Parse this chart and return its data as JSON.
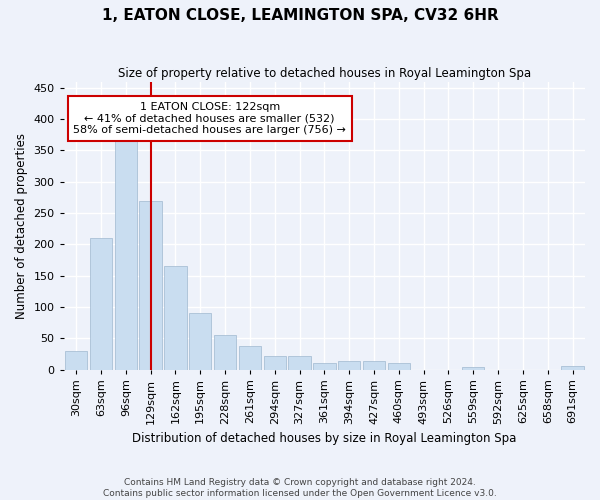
{
  "title": "1, EATON CLOSE, LEAMINGTON SPA, CV32 6HR",
  "subtitle": "Size of property relative to detached houses in Royal Leamington Spa",
  "xlabel": "Distribution of detached houses by size in Royal Leamington Spa",
  "ylabel": "Number of detached properties",
  "annotation_line1": "1 EATON CLOSE: 122sqm",
  "annotation_line2": "← 41% of detached houses are smaller (532)",
  "annotation_line3": "58% of semi-detached houses are larger (756) →",
  "bar_color": "#c9ddf0",
  "vline_color": "#cc0000",
  "background_color": "#eef2fa",
  "footer_line1": "Contains HM Land Registry data © Crown copyright and database right 2024.",
  "footer_line2": "Contains public sector information licensed under the Open Government Licence v3.0.",
  "categories": [
    "30sqm",
    "63sqm",
    "96sqm",
    "129sqm",
    "162sqm",
    "195sqm",
    "228sqm",
    "261sqm",
    "294sqm",
    "327sqm",
    "361sqm",
    "394sqm",
    "427sqm",
    "460sqm",
    "493sqm",
    "526sqm",
    "559sqm",
    "592sqm",
    "625sqm",
    "658sqm",
    "691sqm"
  ],
  "values": [
    30,
    210,
    430,
    270,
    165,
    90,
    55,
    37,
    22,
    22,
    10,
    13,
    13,
    10,
    0,
    0,
    4,
    0,
    0,
    0,
    5
  ],
  "ylim": [
    0,
    460
  ],
  "vline_pos": 3.0
}
